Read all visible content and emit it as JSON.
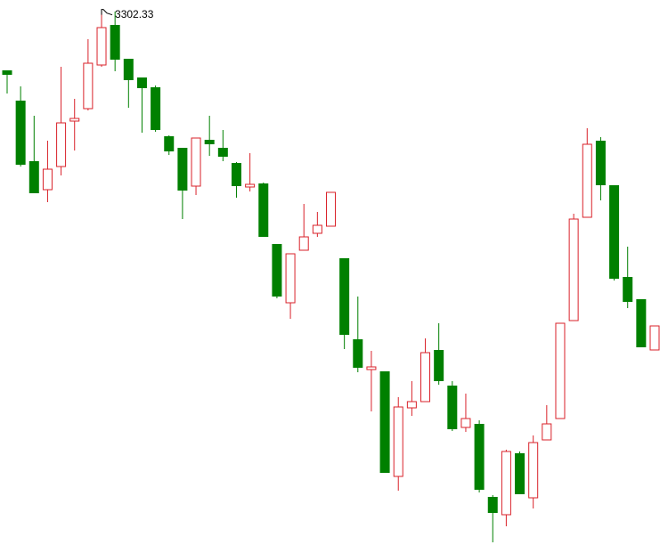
{
  "chart_data": {
    "type": "candlestick",
    "up_color": "#d9222a",
    "down_color": "#008000",
    "ylim": [
      2694,
      3315
    ],
    "open": [
      3236,
      3202,
      3134,
      3102,
      3128,
      3179,
      3193,
      3242,
      3287,
      3249,
      3228,
      3217,
      3162,
      3149,
      3106,
      3158,
      3149,
      3132,
      3105,
      3109,
      3041,
      2975,
      3034,
      3053,
      3061,
      3025,
      2934,
      2900,
      2898,
      2780,
      2857,
      2864,
      2922,
      2882,
      2835,
      2839,
      2757,
      2737,
      2806,
      2756,
      2821,
      2845,
      2955,
      3071,
      3157,
      3107,
      3004,
      2979,
      2922
    ],
    "high": [
      3236,
      3218,
      3185,
      3157,
      3240,
      3204,
      3271,
      3302.33,
      3302,
      3249,
      3228,
      3219,
      3163,
      3149,
      3160,
      3185,
      3169,
      3133,
      3143,
      3110,
      3041,
      3030,
      3086,
      3077,
      3099,
      3025,
      2982,
      2921,
      2898,
      2869,
      2887,
      2935,
      2952,
      2887,
      2873,
      2843,
      2759,
      2810,
      2808,
      2826,
      2860,
      2952,
      3075,
      3171,
      3161,
      3107,
      3038,
      2979,
      2949
    ],
    "low": [
      3210,
      3128,
      3098,
      3088,
      3118,
      3146,
      3191,
      3240,
      3235,
      3194,
      3166,
      3167,
      3141,
      3069,
      3096,
      3140,
      3134,
      3093,
      3100,
      3049,
      2980,
      2957,
      3034,
      3049,
      3061,
      2923,
      2897,
      2853,
      2784,
      2764,
      2848,
      2864,
      2883,
      2831,
      2830,
      2762,
      2706,
      2724,
      2760,
      2744,
      2821,
      2845,
      2955,
      3071,
      3090,
      3000,
      2969,
      2925,
      2922
    ],
    "close": [
      3231,
      3130,
      3098,
      3125,
      3177,
      3182,
      3244,
      3284,
      3248,
      3225,
      3216,
      3169,
      3145,
      3101,
      3160,
      3153,
      3139,
      3106,
      3108,
      3049,
      2982,
      3030,
      3049,
      3062,
      3099,
      2939,
      2902,
      2903,
      2784,
      2858,
      2864,
      2919,
      2887,
      2833,
      2845,
      2765,
      2739,
      2808,
      2760,
      2818,
      2839,
      2952,
      3069,
      3153,
      3107,
      3002,
      2976,
      2925,
      2949
    ],
    "annotation": {
      "index": 7,
      "field": "high"
    }
  }
}
